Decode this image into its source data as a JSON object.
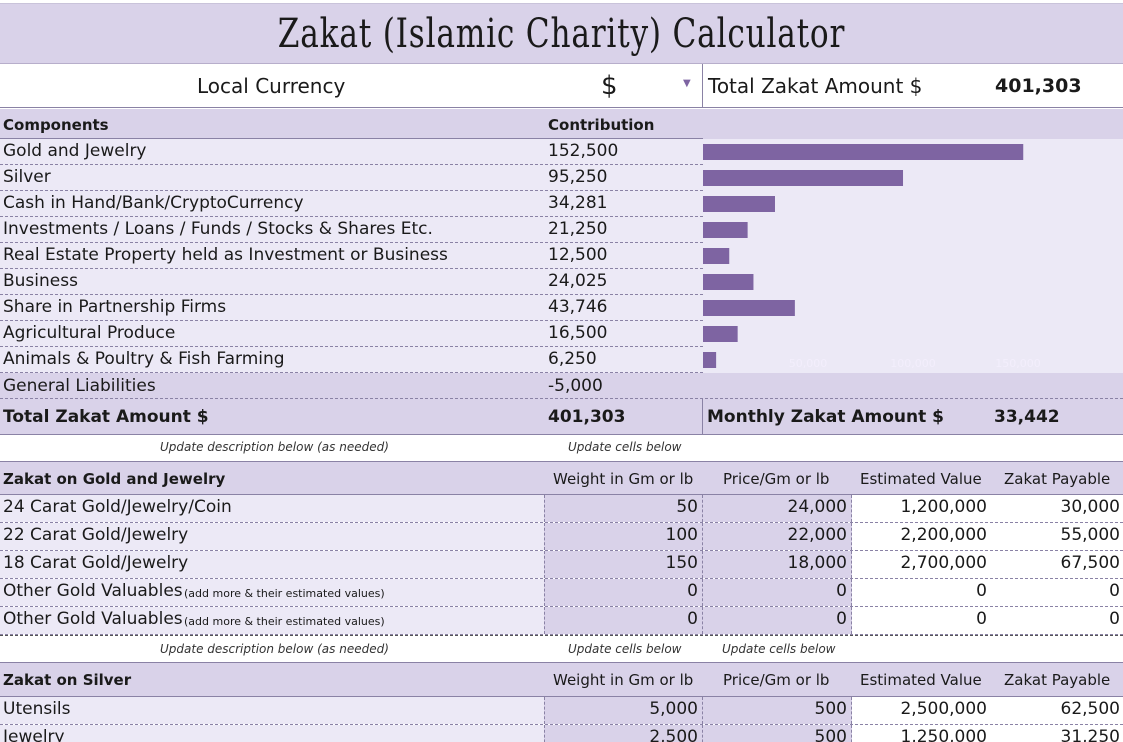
{
  "title": "Zakat (Islamic Charity) Calculator",
  "header": {
    "currency_label": "Local Currency",
    "currency_value": "$",
    "total_label": "Total Zakat Amount $",
    "total_value": "401,303"
  },
  "components": {
    "col_components": "Components",
    "col_contribution": "Contribution",
    "rows": [
      {
        "name": "Gold and Jewelry",
        "value": "152,500"
      },
      {
        "name": "Silver",
        "value": "95,250"
      },
      {
        "name": "Cash in Hand/Bank/CryptoCurrency",
        "value": "34,281"
      },
      {
        "name": "Investments / Loans / Funds / Stocks & Shares Etc.",
        "value": "21,250"
      },
      {
        "name": "Real Estate Property held as Investment or Business",
        "value": "12,500"
      },
      {
        "name": "Business",
        "value": "24,025"
      },
      {
        "name": "Share in Partnership Firms",
        "value": "43,746"
      },
      {
        "name": "Agricultural Produce",
        "value": "16,500"
      },
      {
        "name": "Animals & Poultry & Fish Farming",
        "value": "6,250"
      }
    ],
    "liabilities_label": "General Liabilities",
    "liabilities_value": "-5,000",
    "total_label": "Total Zakat Amount $",
    "total_value": "401,303",
    "monthly_label": "Monthly Zakat Amount $",
    "monthly_value": "33,442"
  },
  "chart_data": {
    "type": "bar",
    "orientation": "horizontal",
    "categories": [
      "Gold and Jewelry",
      "Silver",
      "Cash in Hand/Bank/CryptoCurrency",
      "Investments / Loans / Funds / Stocks & Shares Etc.",
      "Real Estate Property held as Investment or Business",
      "Business",
      "Share in Partnership Firms",
      "Agricultural Produce",
      "Animals & Poultry & Fish Farming"
    ],
    "values": [
      152500,
      95250,
      34281,
      21250,
      12500,
      24025,
      43746,
      16500,
      6250
    ],
    "xlim": [
      0,
      200000
    ],
    "tick_labels": [
      "50,000",
      "100,000",
      "150,000"
    ],
    "tick_values": [
      50000,
      100000,
      150000
    ],
    "bar_color": "#7e64a2",
    "tick_color": "#f3eefc"
  },
  "notes": {
    "update_description": "Update description below (as needed)",
    "update_cells": "Update cells below"
  },
  "gold": {
    "title": "Zakat on Gold and Jewelry",
    "columns": [
      "Weight in Gm or lb",
      "Price/Gm or lb",
      "Estimated Value",
      "Zakat Payable"
    ],
    "rows": [
      {
        "name": "24 Carat Gold/Jewelry/Coin",
        "note": "",
        "weight": "50",
        "price": "24,000",
        "est": "1,200,000",
        "zakat": "30,000"
      },
      {
        "name": "22 Carat Gold/Jewelry",
        "note": "",
        "weight": "100",
        "price": "22,000",
        "est": "2,200,000",
        "zakat": "55,000"
      },
      {
        "name": "18 Carat Gold/Jewelry",
        "note": "",
        "weight": "150",
        "price": "18,000",
        "est": "2,700,000",
        "zakat": "67,500"
      },
      {
        "name": "Other Gold Valuables",
        "note": "(add more & their estimated values)",
        "weight": "0",
        "price": "0",
        "est": "0",
        "zakat": "0"
      },
      {
        "name": "Other Gold Valuables",
        "note": "(add more & their estimated values)",
        "weight": "0",
        "price": "0",
        "est": "0",
        "zakat": "0"
      }
    ],
    "note_desc": "Update description below (as needed)",
    "note_cells_1": "Update cells below",
    "note_cells_2": "Update cells below"
  },
  "silver": {
    "title": "Zakat on Silver",
    "columns": [
      "Weight in Gm or lb",
      "Price/Gm or lb",
      "Estimated Value",
      "Zakat Payable"
    ],
    "rows": [
      {
        "name": "Utensils",
        "weight": "5,000",
        "price": "500",
        "est": "2,500,000",
        "zakat": "62,500"
      },
      {
        "name": "Jewelry",
        "weight": "2,500",
        "price": "500",
        "est": "1,250,000",
        "zakat": "31,250"
      }
    ]
  }
}
